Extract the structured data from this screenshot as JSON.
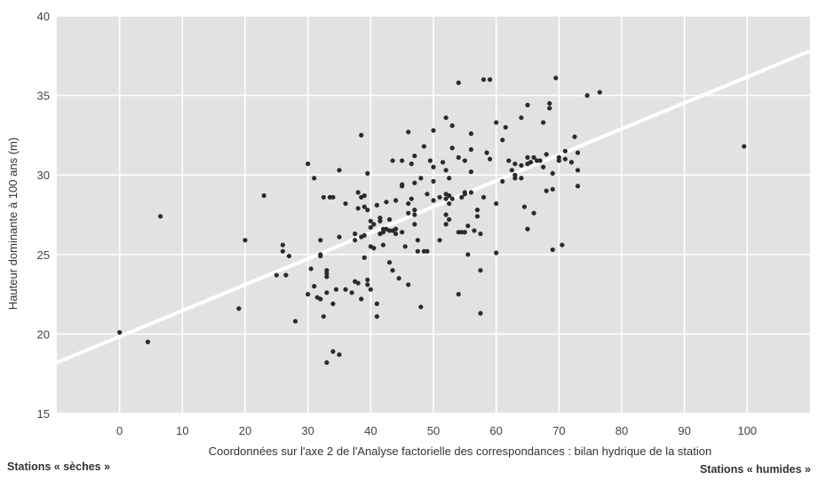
{
  "chart_data": {
    "type": "scatter",
    "xlabel": "Coordonnées sur l'axe 2 de l'Analyse factorielle des correspondances : bilan hydrique de la station",
    "ylabel": "Hauteur dominante à 100 ans (m)",
    "xlim": [
      -10,
      110
    ],
    "ylim": [
      15,
      40
    ],
    "x_ticks": [
      0,
      10,
      20,
      30,
      40,
      50,
      60,
      70,
      80,
      90,
      100
    ],
    "y_ticks": [
      15,
      20,
      25,
      30,
      35,
      40
    ],
    "grid": true,
    "background": "#e2e2e2",
    "grid_color": "#ffffff",
    "point_color": "#2b2b2b",
    "trend_color": "#ffffff",
    "trend_line": {
      "x": [
        -10,
        110
      ],
      "y": [
        18.2,
        37.8
      ]
    },
    "points": [
      [
        0,
        20.1
      ],
      [
        4.5,
        19.5
      ],
      [
        6.5,
        27.4
      ],
      [
        19,
        21.6
      ],
      [
        20,
        25.9
      ],
      [
        23,
        28.7
      ],
      [
        25,
        23.7
      ],
      [
        26,
        25.6
      ],
      [
        26,
        25.2
      ],
      [
        26.5,
        23.7
      ],
      [
        27,
        24.9
      ],
      [
        28,
        20.8
      ],
      [
        30,
        30.7
      ],
      [
        30,
        22.5
      ],
      [
        30.5,
        24.1
      ],
      [
        31,
        29.8
      ],
      [
        31,
        23
      ],
      [
        31.5,
        22.3
      ],
      [
        32,
        25
      ],
      [
        32,
        25.9
      ],
      [
        32,
        24.9
      ],
      [
        32,
        22.2
      ],
      [
        32.5,
        21.1
      ],
      [
        32.5,
        28.6
      ],
      [
        33,
        24
      ],
      [
        33,
        23.6
      ],
      [
        33,
        23.8
      ],
      [
        33,
        22.6
      ],
      [
        33,
        18.2
      ],
      [
        33.5,
        28.6
      ],
      [
        34,
        18.9
      ],
      [
        34,
        28.6
      ],
      [
        34,
        21.9
      ],
      [
        34.5,
        22.8
      ],
      [
        35,
        18.7
      ],
      [
        35,
        30.3
      ],
      [
        35,
        26.1
      ],
      [
        36,
        28.2
      ],
      [
        36,
        22.8
      ],
      [
        37,
        22.6
      ],
      [
        37.5,
        23.3
      ],
      [
        37.5,
        26.3
      ],
      [
        37.5,
        25.9
      ],
      [
        38,
        28.9
      ],
      [
        38,
        27.9
      ],
      [
        38,
        23.2
      ],
      [
        38.5,
        22.2
      ],
      [
        38.5,
        26.1
      ],
      [
        38.5,
        28.6
      ],
      [
        38.5,
        32.5
      ],
      [
        39,
        28.7
      ],
      [
        39,
        28
      ],
      [
        39,
        26.2
      ],
      [
        39,
        24.8
      ],
      [
        39.5,
        30.1
      ],
      [
        39.5,
        23.1
      ],
      [
        39.5,
        23.4
      ],
      [
        39.5,
        27.8
      ],
      [
        40,
        26.7
      ],
      [
        40,
        27.1
      ],
      [
        40,
        25.5
      ],
      [
        40,
        22.8
      ],
      [
        40.5,
        25.4
      ],
      [
        40.5,
        26.9
      ],
      [
        41,
        28.1
      ],
      [
        41,
        21.9
      ],
      [
        41,
        21.1
      ],
      [
        41.5,
        26.3
      ],
      [
        41.5,
        27.3
      ],
      [
        41.5,
        27.1
      ],
      [
        42,
        26.6
      ],
      [
        42,
        26.4
      ],
      [
        42,
        25.6
      ],
      [
        42.5,
        26.6
      ],
      [
        42.5,
        28.3
      ],
      [
        43,
        27.2
      ],
      [
        43,
        26.5
      ],
      [
        43,
        24.5
      ],
      [
        43.5,
        26.5
      ],
      [
        43.5,
        24
      ],
      [
        43.5,
        30.9
      ],
      [
        44,
        26.6
      ],
      [
        44,
        28.4
      ],
      [
        44,
        26.3
      ],
      [
        44.5,
        23.5
      ],
      [
        45,
        29.3
      ],
      [
        45,
        30.9
      ],
      [
        45,
        29.4
      ],
      [
        45,
        26.4
      ],
      [
        45.5,
        25.5
      ],
      [
        46,
        28.2
      ],
      [
        46,
        27.6
      ],
      [
        46,
        32.7
      ],
      [
        46,
        23.1
      ],
      [
        46.5,
        30.7
      ],
      [
        46.5,
        28.5
      ],
      [
        47,
        29.5
      ],
      [
        47,
        31.2
      ],
      [
        47,
        27.8
      ],
      [
        47,
        27.5
      ],
      [
        47,
        26.9
      ],
      [
        47.5,
        25.2
      ],
      [
        47.5,
        25.9
      ],
      [
        48,
        29.8
      ],
      [
        48,
        21.7
      ],
      [
        48.5,
        25.2
      ],
      [
        48.5,
        31.8
      ],
      [
        49,
        25.2
      ],
      [
        49,
        28.8
      ],
      [
        49.5,
        30.9
      ],
      [
        50,
        30.5
      ],
      [
        50,
        29.6
      ],
      [
        50,
        32.8
      ],
      [
        50,
        28.4
      ],
      [
        51,
        28.6
      ],
      [
        51,
        25.9
      ],
      [
        51.5,
        30.8
      ],
      [
        52,
        33.6
      ],
      [
        52,
        30.3
      ],
      [
        52,
        28.8
      ],
      [
        52,
        28.5
      ],
      [
        52,
        27.5
      ],
      [
        52,
        26.9
      ],
      [
        52.5,
        29.8
      ],
      [
        52.5,
        28.7
      ],
      [
        52.5,
        28.2
      ],
      [
        52.5,
        27.2
      ],
      [
        53,
        33.1
      ],
      [
        53,
        31.7
      ],
      [
        53,
        28.5
      ],
      [
        54,
        35.8
      ],
      [
        54,
        31.1
      ],
      [
        54,
        26.4
      ],
      [
        54,
        22.5
      ],
      [
        54.5,
        28.6
      ],
      [
        54.5,
        26.4
      ],
      [
        55,
        28.8
      ],
      [
        55,
        30.9
      ],
      [
        55,
        28.9
      ],
      [
        55,
        26.4
      ],
      [
        55.5,
        26.8
      ],
      [
        55.5,
        25
      ],
      [
        56,
        28.9
      ],
      [
        56,
        32.6
      ],
      [
        56,
        31.6
      ],
      [
        56,
        30.2
      ],
      [
        56.5,
        26.5
      ],
      [
        57,
        27.8
      ],
      [
        57,
        27.4
      ],
      [
        57.5,
        26.3
      ],
      [
        57.5,
        21.3
      ],
      [
        57.5,
        24
      ],
      [
        58,
        36
      ],
      [
        58,
        28.6
      ],
      [
        58.5,
        31.4
      ],
      [
        59,
        36
      ],
      [
        59,
        31
      ],
      [
        60,
        33.3
      ],
      [
        60,
        28.2
      ],
      [
        60,
        25.1
      ],
      [
        61,
        29.6
      ],
      [
        61,
        32.2
      ],
      [
        61.5,
        33
      ],
      [
        62,
        30.9
      ],
      [
        62.5,
        30.3
      ],
      [
        63,
        30.7
      ],
      [
        63,
        29.8
      ],
      [
        63,
        30
      ],
      [
        64,
        33.6
      ],
      [
        64,
        30.6
      ],
      [
        64,
        29.8
      ],
      [
        64.5,
        28
      ],
      [
        65,
        34.4
      ],
      [
        65,
        31.1
      ],
      [
        65,
        30.7
      ],
      [
        65,
        26.6
      ],
      [
        65.5,
        30.8
      ],
      [
        66,
        31.1
      ],
      [
        66,
        27.6
      ],
      [
        66.5,
        30.9
      ],
      [
        67,
        30.9
      ],
      [
        67.5,
        33.3
      ],
      [
        67.5,
        30.5
      ],
      [
        68,
        29
      ],
      [
        68,
        31.3
      ],
      [
        68.5,
        34.2
      ],
      [
        68.5,
        34.5
      ],
      [
        69,
        25.3
      ],
      [
        69,
        30.1
      ],
      [
        69,
        29.1
      ],
      [
        69.5,
        36.1
      ],
      [
        70,
        31.1
      ],
      [
        70,
        30.9
      ],
      [
        70.5,
        25.6
      ],
      [
        71,
        31.5
      ],
      [
        71,
        31
      ],
      [
        72,
        30.8
      ],
      [
        72.5,
        32.4
      ],
      [
        73,
        30.3
      ],
      [
        73,
        31.4
      ],
      [
        73,
        29.3
      ],
      [
        74.5,
        35
      ],
      [
        76.5,
        35.2
      ],
      [
        99.5,
        31.8
      ]
    ]
  },
  "notes": {
    "left": "Stations « sèches »",
    "right": "Stations « humides »"
  }
}
